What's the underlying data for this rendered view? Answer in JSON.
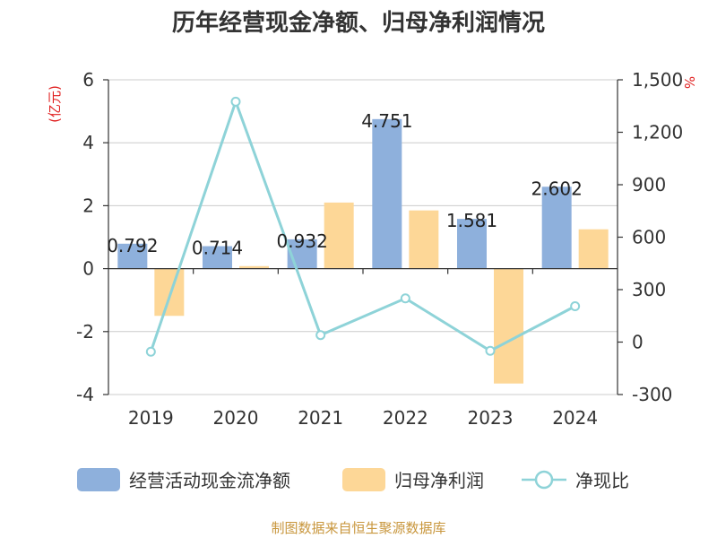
{
  "chart_data": {
    "type": "bar",
    "title": "历年经营现金净额、归母净利润情况",
    "categories": [
      "2019",
      "2020",
      "2021",
      "2022",
      "2023",
      "2024"
    ],
    "y_left": {
      "unit_label": "(亿元)",
      "range": [
        -4,
        6
      ],
      "ticks": [
        "-4",
        "-2",
        "0",
        "2",
        "4",
        "6"
      ]
    },
    "y_right": {
      "unit_label": "%",
      "range": [
        -300,
        1500
      ],
      "ticks": [
        "-300",
        "0",
        "300",
        "600",
        "900",
        "1,200",
        "1,500"
      ]
    },
    "grid": true,
    "legend_position": "bottom",
    "series": [
      {
        "name": "经营活动现金流净额",
        "kind": "bar",
        "axis": "left",
        "color": "#8eb0dc",
        "values": [
          0.792,
          0.714,
          0.932,
          4.751,
          1.581,
          2.602
        ],
        "labels": [
          "0.792",
          "0.714",
          "0.932",
          "4.751",
          "1.581",
          "2.602"
        ]
      },
      {
        "name": "归母净利润",
        "kind": "bar",
        "axis": "left",
        "color": "#fdd797",
        "values": [
          -1.5,
          0.08,
          2.1,
          1.85,
          -3.65,
          1.25
        ]
      },
      {
        "name": "净现比",
        "kind": "line",
        "axis": "right",
        "color": "#8ed3d8",
        "values": [
          -55,
          1375,
          40,
          250,
          -50,
          205
        ]
      }
    ]
  },
  "source": "制图数据来自恒生聚源数据库"
}
